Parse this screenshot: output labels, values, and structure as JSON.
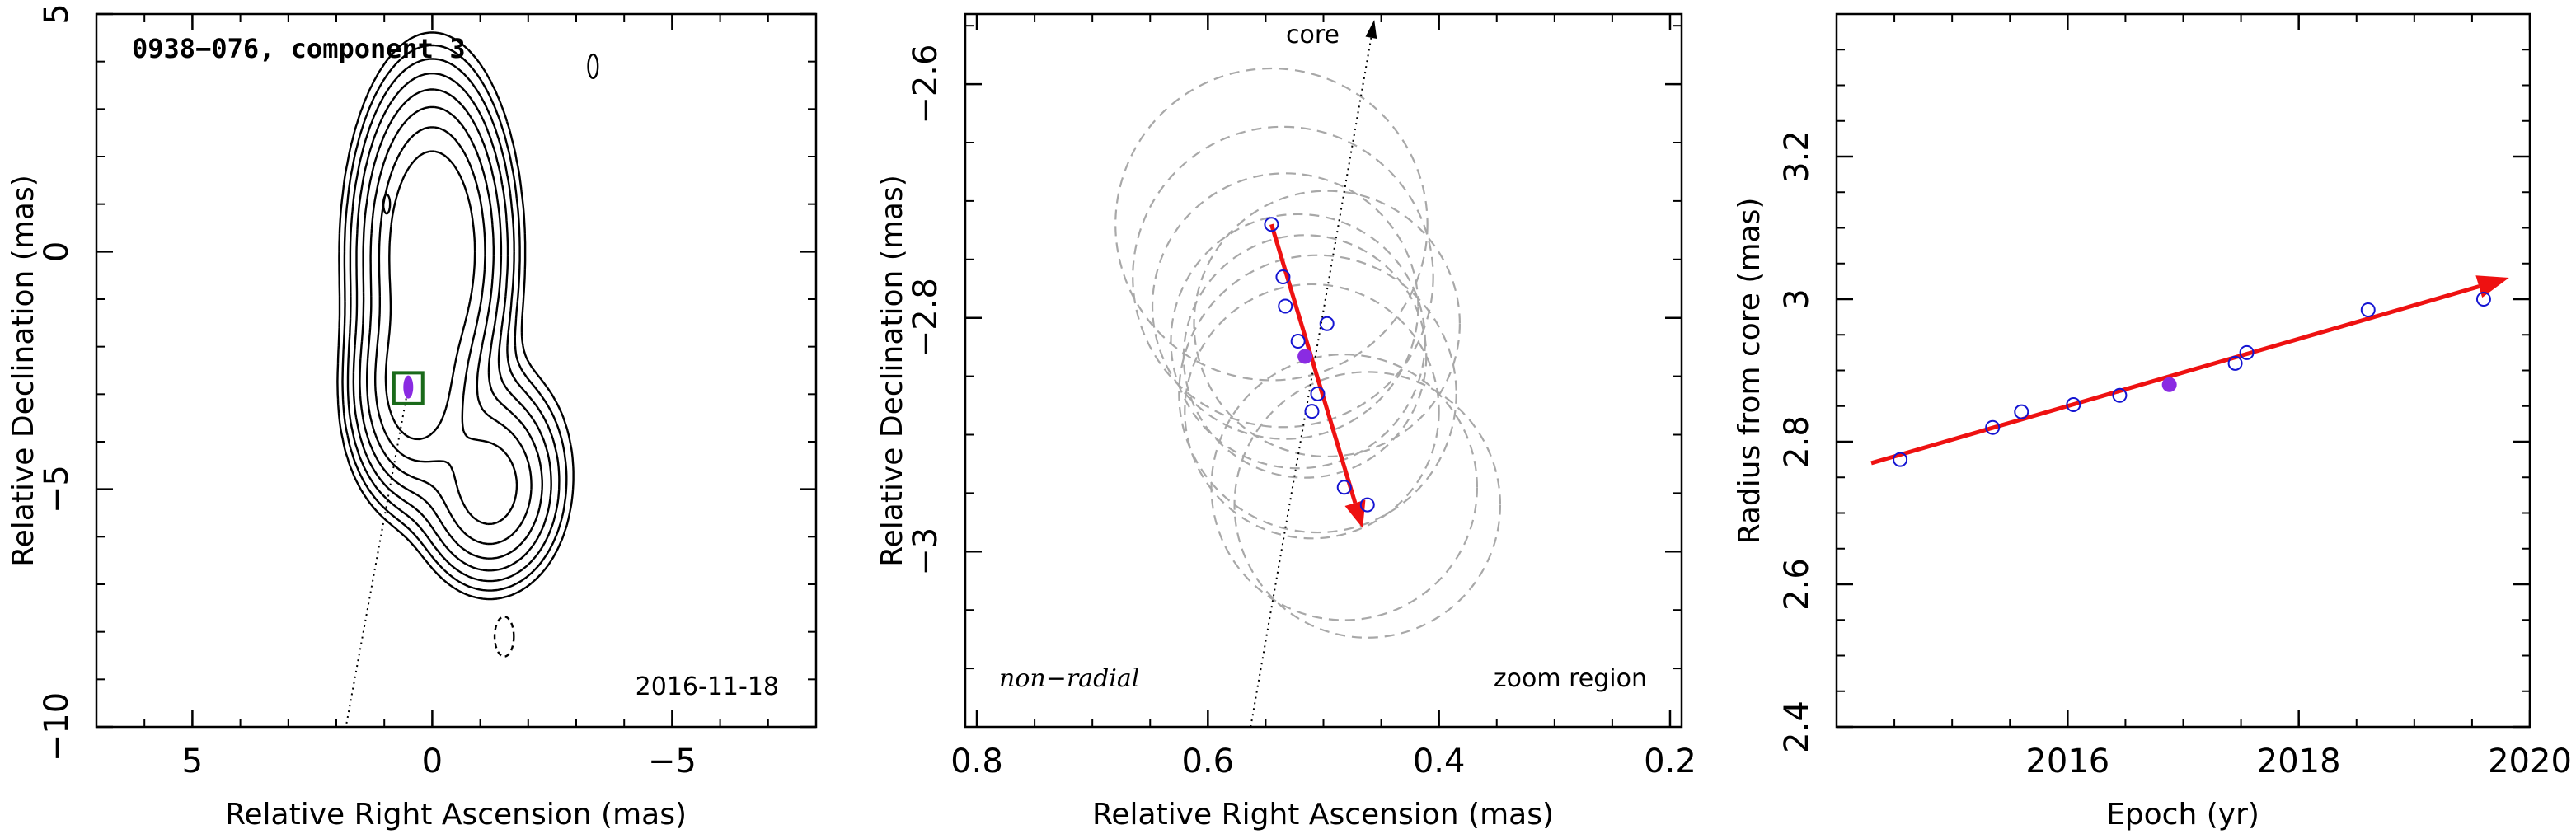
{
  "colors": {
    "contour": "#000000",
    "dashed_contour": "#000000",
    "circles": "#a8a8a8",
    "open_points": "#1414d2",
    "filled_point": "#8a2be2",
    "arrow": "#ee1111",
    "box": "#1a6a1a"
  },
  "chart_data": [
    {
      "type": "contour",
      "title": "0938−076, component 3",
      "epoch_label": "2016-11-18",
      "xlabel": "Relative Right Ascension (mas)",
      "ylabel": "Relative Declination (mas)",
      "xlim": [
        7,
        -8
      ],
      "ylim": [
        -10,
        5
      ],
      "xticks": [
        5,
        0,
        -5
      ],
      "xtick_labels": [
        "5",
        "0",
        "−5"
      ],
      "yticks": [
        -10,
        -5,
        0,
        5
      ],
      "ytick_labels": [
        "−10",
        "−5",
        "0",
        "5"
      ],
      "component_position": [
        0.5,
        -2.85
      ],
      "zoom_box": {
        "x": [
          0.8,
          0.2
        ],
        "y": [
          -2.55,
          -3.2
        ]
      },
      "jet_axis_to": [
        1.8,
        -10
      ],
      "contours": {
        "levels": 8,
        "components": [
          {
            "x": 0.0,
            "y": 0.0,
            "sx": 0.65,
            "sy": 1.55,
            "amp": 1.0
          },
          {
            "x": 0.4,
            "y": -2.9,
            "sx": 0.55,
            "sy": 1.0,
            "amp": 0.55
          },
          {
            "x": -1.2,
            "y": -5.0,
            "sx": 0.65,
            "sy": 0.9,
            "amp": 0.32
          },
          {
            "x": -0.7,
            "y": -3.9,
            "sx": 1.0,
            "sy": 1.0,
            "amp": 0.06
          }
        ],
        "isolated": [
          {
            "x": -3.35,
            "y": 3.9,
            "rx": 0.1,
            "ry": 0.25,
            "dashed": false
          },
          {
            "x": 0.95,
            "y": 1.0,
            "rx": 0.07,
            "ry": 0.2,
            "dashed": false
          },
          {
            "x": -1.5,
            "y": -8.1,
            "rx": 0.2,
            "ry": 0.42,
            "dashed": true
          }
        ]
      }
    },
    {
      "type": "scatter",
      "xlabel": "Relative Right Ascension (mas)",
      "ylabel": "Relative Declination (mas)",
      "xlim": [
        0.81,
        0.19
      ],
      "ylim": [
        -3.15,
        -2.54
      ],
      "xticks": [
        0.8,
        0.6,
        0.4,
        0.2
      ],
      "xtick_labels": [
        "0.8",
        "0.6",
        "0.4",
        "0.2"
      ],
      "yticks": [
        -3.0,
        -2.8,
        -2.6
      ],
      "ytick_labels": [
        "−3",
        "−2.8",
        "−2.6"
      ],
      "annotations": {
        "core": "core",
        "motion": "non−radial",
        "region": "zoom region"
      },
      "core_axis": {
        "from": [
          0.563,
          -3.15
        ],
        "to": [
          0.456,
          -2.545
        ]
      },
      "open_points": [
        {
          "x": 0.545,
          "y": -2.72
        },
        {
          "x": 0.535,
          "y": -2.765
        },
        {
          "x": 0.533,
          "y": -2.79
        },
        {
          "x": 0.522,
          "y": -2.82
        },
        {
          "x": 0.497,
          "y": -2.805
        },
        {
          "x": 0.505,
          "y": -2.865
        },
        {
          "x": 0.51,
          "y": -2.88
        },
        {
          "x": 0.482,
          "y": -2.945
        },
        {
          "x": 0.462,
          "y": -2.96
        }
      ],
      "filled_point": {
        "x": 0.516,
        "y": -2.833
      },
      "arrow": {
        "from": [
          0.545,
          -2.72
        ],
        "to": [
          0.466,
          -2.98
        ]
      },
      "circles": [
        {
          "x": 0.545,
          "y": -2.72,
          "r": 0.135
        },
        {
          "x": 0.535,
          "y": -2.765,
          "r": 0.13
        },
        {
          "x": 0.533,
          "y": -2.79,
          "r": 0.115
        },
        {
          "x": 0.522,
          "y": -2.82,
          "r": 0.11
        },
        {
          "x": 0.497,
          "y": -2.805,
          "r": 0.115
        },
        {
          "x": 0.505,
          "y": -2.865,
          "r": 0.12
        },
        {
          "x": 0.51,
          "y": -2.88,
          "r": 0.11
        },
        {
          "x": 0.482,
          "y": -2.945,
          "r": 0.115
        },
        {
          "x": 0.462,
          "y": -2.96,
          "r": 0.115
        },
        {
          "x": 0.516,
          "y": -2.833,
          "r": 0.105
        }
      ]
    },
    {
      "type": "scatter",
      "xlabel": "Epoch (yr)",
      "ylabel": "Radius from core (mas)",
      "xlim": [
        2014.0,
        2020.0
      ],
      "ylim": [
        2.4,
        3.4
      ],
      "xticks": [
        2016,
        2018,
        2020
      ],
      "xtick_labels": [
        "2016",
        "2018",
        "2020"
      ],
      "yticks": [
        2.4,
        2.6,
        2.8,
        3.0,
        3.2
      ],
      "ytick_labels": [
        "2.4",
        "2.6",
        "2.8",
        "3",
        "3.2"
      ],
      "open_points": [
        {
          "x": 2014.55,
          "y": 2.775
        },
        {
          "x": 2015.35,
          "y": 2.82
        },
        {
          "x": 2015.6,
          "y": 2.842
        },
        {
          "x": 2016.05,
          "y": 2.852
        },
        {
          "x": 2016.45,
          "y": 2.865
        },
        {
          "x": 2017.45,
          "y": 2.91
        },
        {
          "x": 2017.55,
          "y": 2.925
        },
        {
          "x": 2018.6,
          "y": 2.985
        },
        {
          "x": 2019.6,
          "y": 3.0
        }
      ],
      "filled_point": {
        "x": 2016.88,
        "y": 2.88
      },
      "fit_arrow": {
        "from": [
          2014.3,
          2.77
        ],
        "to": [
          2019.82,
          3.03
        ]
      }
    }
  ]
}
